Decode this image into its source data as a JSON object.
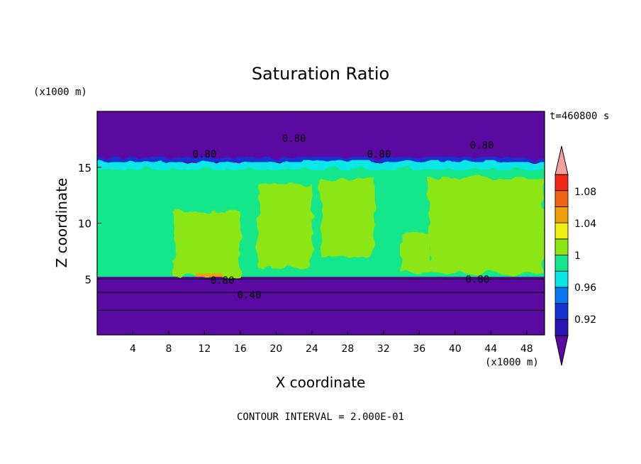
{
  "chart_data": {
    "type": "heatmap",
    "title": "Saturation Ratio",
    "xlabel": "X coordinate",
    "ylabel": "Z coordinate",
    "x_unit": "(x1000 m)",
    "y_unit": "(x1000 m)",
    "time_label": "t=460800 s",
    "footer": "CONTOUR INTERVAL = 2.000E-01",
    "xlim": [
      0,
      50
    ],
    "ylim": [
      0,
      20
    ],
    "x_ticks": [
      4,
      8,
      12,
      16,
      20,
      24,
      28,
      32,
      36,
      40,
      44,
      48
    ],
    "y_ticks": [
      5,
      10,
      15
    ],
    "contour_labels": [
      {
        "text": "0.80",
        "x": 22,
        "y": 17.6
      },
      {
        "text": "0.80",
        "x": 12,
        "y": 16.2
      },
      {
        "text": "0.80",
        "x": 31.5,
        "y": 16.2
      },
      {
        "text": "0.80",
        "x": 43,
        "y": 17.0
      },
      {
        "text": "0.80",
        "x": 14,
        "y": 4.9
      },
      {
        "text": "0.80",
        "x": 42.5,
        "y": 5.0
      },
      {
        "text": "0.40",
        "x": 17,
        "y": 3.6
      }
    ],
    "legend": {
      "labels": [
        "1.08",
        "1.04",
        "1",
        "0.96",
        "0.92"
      ],
      "levels": [
        {
          "color": "#5a0aa0"
        },
        {
          "color": "#2b14b4"
        },
        {
          "color": "#1432d2"
        },
        {
          "color": "#0a78f0"
        },
        {
          "color": "#0ae6e6"
        },
        {
          "color": "#14e68c"
        },
        {
          "color": "#8ce614"
        },
        {
          "color": "#f0f014"
        },
        {
          "color": "#f0a00a"
        },
        {
          "color": "#f06414"
        },
        {
          "color": "#f02814"
        },
        {
          "color": "#f5a0a0"
        }
      ]
    },
    "regions": [
      {
        "level": "1",
        "x": [
          0,
          50
        ],
        "y": [
          5.2,
          15.2
        ]
      },
      {
        "level": ">1",
        "x": [
          8.5,
          16
        ],
        "y": [
          5.2,
          11
        ]
      },
      {
        "level": ">1",
        "x": [
          18,
          24
        ],
        "y": [
          6,
          13.5
        ]
      },
      {
        "level": ">1",
        "x": [
          25,
          31
        ],
        "y": [
          7,
          14
        ]
      },
      {
        "level": ">1",
        "x": [
          34,
          37
        ],
        "y": [
          5.5,
          9
        ]
      },
      {
        "level": ">1",
        "x": [
          37,
          50
        ],
        "y": [
          5.5,
          14
        ]
      },
      {
        "level": "1.04",
        "x": [
          11,
          14
        ],
        "y": [
          5.2,
          5.5
        ]
      },
      {
        "level": "0.80",
        "x": [
          0,
          50
        ],
        "y": [
          15.2,
          20
        ]
      },
      {
        "level": "0.80",
        "x": [
          0,
          50
        ],
        "y": [
          0,
          5.2
        ]
      }
    ]
  }
}
